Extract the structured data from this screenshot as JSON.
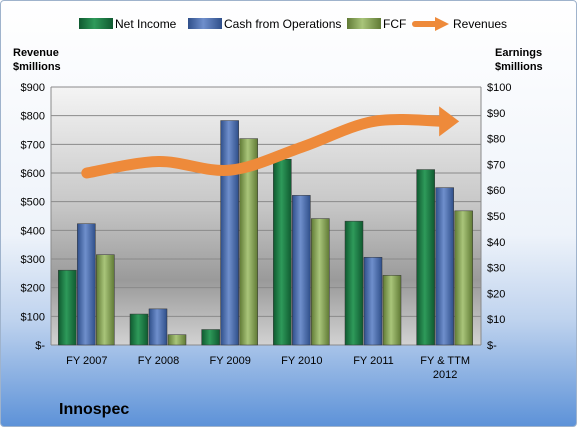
{
  "chart_data": {
    "type": "bar",
    "title": "",
    "company_label": "Innospec",
    "categories": [
      "FY 2007",
      "FY 2008",
      "FY 2009",
      "FY 2010",
      "FY 2011",
      "FY & TTM|2012"
    ],
    "left_axis": {
      "label": [
        "Revenue",
        "$millions"
      ],
      "ylim": [
        0,
        900
      ],
      "ticks": [
        "$-",
        "$100",
        "$200",
        "$300",
        "$400",
        "$500",
        "$600",
        "$700",
        "$800",
        "$900"
      ]
    },
    "right_axis": {
      "label": [
        "Earnings",
        "$millions"
      ],
      "ylim": [
        0,
        100
      ],
      "ticks": [
        "$-",
        "$10",
        "$20",
        "$30",
        "$40",
        "$50",
        "$60",
        "$70",
        "$80",
        "$90",
        "$100"
      ]
    },
    "series": [
      {
        "name": "Net Income",
        "axis": "right",
        "kind": "bar",
        "color": "#1f7a45",
        "values": [
          29,
          12,
          6,
          72,
          48,
          68
        ]
      },
      {
        "name": "Cash from Operations",
        "axis": "right",
        "kind": "bar",
        "color": "#4a6aa8",
        "values": [
          47,
          14,
          87,
          58,
          34,
          61
        ]
      },
      {
        "name": "FCF",
        "axis": "right",
        "kind": "bar",
        "color": "#8aa85a",
        "values": [
          35,
          4,
          80,
          49,
          27,
          52
        ]
      },
      {
        "name": "Revenues",
        "axis": "left",
        "kind": "line",
        "color": "#ee8a3a",
        "values": [
          600,
          640,
          610,
          690,
          780,
          780
        ]
      }
    ],
    "grid": true,
    "legend": "top"
  }
}
